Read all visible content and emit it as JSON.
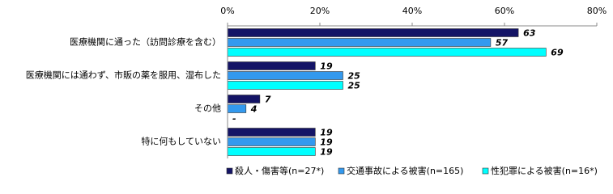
{
  "chart_data": {
    "type": "bar",
    "orientation": "horizontal",
    "categories": [
      "医療機関に通った（訪問診療を含む）",
      "医療機関には通わず、市販の薬を服用、湿布した",
      "その他",
      "特に何もしていない"
    ],
    "series": [
      {
        "name": "殺人・傷害等(n=27*)",
        "color": "#141466",
        "values": [
          63,
          19,
          7,
          19
        ]
      },
      {
        "name": "交通事故による被害(n=165)",
        "color": "#3399ee",
        "values": [
          57,
          25,
          4,
          19
        ]
      },
      {
        "name": "性犯罪による被害(n=16*)",
        "color": "#00ffff",
        "values": [
          69,
          25,
          0,
          19
        ],
        "value_labels": [
          "69",
          "25",
          "-",
          "19"
        ]
      }
    ],
    "xlim": [
      0,
      80
    ],
    "xticks": [
      {
        "value": 0,
        "label": "0%"
      },
      {
        "value": 20,
        "label": "20%"
      },
      {
        "value": 40,
        "label": "40%"
      },
      {
        "value": 60,
        "label": "60%"
      },
      {
        "value": 80,
        "label": "80%"
      }
    ],
    "grid": false,
    "legend": "bottom"
  }
}
